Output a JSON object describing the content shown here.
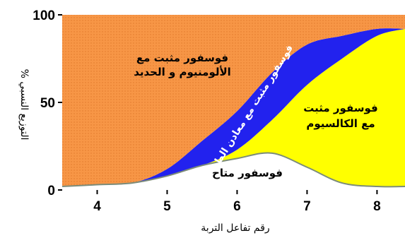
{
  "chart_data": {
    "type": "area",
    "stacked": true,
    "xlabel": "رقم تفاعل التربة",
    "ylabel": "التوزيع النسبي %",
    "xlim": [
      3.5,
      8.4
    ],
    "ylim": [
      0,
      100
    ],
    "x_ticks": [
      "4",
      "5",
      "6",
      "7",
      "8"
    ],
    "y_ticks": [
      "0",
      "50",
      "100"
    ],
    "x": [
      3.5,
      4.0,
      4.5,
      5.0,
      5.5,
      6.0,
      6.5,
      7.0,
      7.5,
      8.0,
      8.4
    ],
    "series": [
      {
        "name": "فوسفور متاح",
        "color": "#ffffff",
        "values": [
          2,
          3,
          4,
          8,
          14,
          18,
          21,
          13,
          4,
          2,
          2
        ]
      },
      {
        "name": "فوسفور مثبت مع الكالسيوم",
        "color": "#ffff00",
        "values": [
          0,
          0,
          0,
          0,
          0,
          5,
          19,
          47,
          71,
          86,
          90
        ]
      },
      {
        "name": "فوسفور مثبت مع معادن الطين",
        "color": "#2222ee",
        "values": [
          0,
          0,
          0,
          4,
          14,
          22,
          27,
          23,
          13,
          4,
          0
        ]
      },
      {
        "name": "فوسفور مثبت مع الألومنيوم و الحديد",
        "color": "#f79646",
        "values": [
          98,
          97,
          96,
          88,
          72,
          55,
          33,
          17,
          12,
          8,
          8
        ]
      }
    ]
  },
  "labels": {
    "al_fe_line1": "فوسفور مثبت مع",
    "al_fe_line2": "الألومنيوم و الحديد",
    "clay": "فوسفور مثبت مع معادن الطين",
    "ca_line1": "فوسفور مثبت",
    "ca_line2": "مع الكالسيوم",
    "available": "فوسفور متاح"
  }
}
